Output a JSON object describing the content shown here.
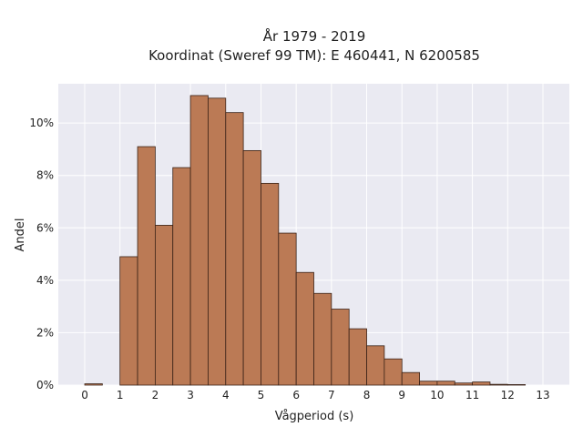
{
  "chart_data": {
    "type": "bar",
    "title_line1": "År 1979 - 2019",
    "title_line2": "Koordinat (Sweref 99 TM): E 460441, N 6200585",
    "xlabel": "Vågperiod (s)",
    "ylabel": "Andel",
    "x_ticks": [
      "0",
      "1",
      "2",
      "3",
      "4",
      "5",
      "6",
      "7",
      "8",
      "9",
      "10",
      "11",
      "12",
      "13"
    ],
    "y_ticks": [
      "0%",
      "2%",
      "4%",
      "6%",
      "8%",
      "10%"
    ],
    "xlim": [
      -0.75,
      13.75
    ],
    "ylim": [
      0,
      11.5
    ],
    "bin_width": 0.5,
    "bins": [
      {
        "x0": 0.0,
        "value": 0.05
      },
      {
        "x0": 1.0,
        "value": 4.9
      },
      {
        "x0": 1.5,
        "value": 9.1
      },
      {
        "x0": 2.0,
        "value": 6.1
      },
      {
        "x0": 2.5,
        "value": 8.3
      },
      {
        "x0": 3.0,
        "value": 11.05
      },
      {
        "x0": 3.5,
        "value": 10.95
      },
      {
        "x0": 4.0,
        "value": 10.4
      },
      {
        "x0": 4.5,
        "value": 8.95
      },
      {
        "x0": 5.0,
        "value": 7.7
      },
      {
        "x0": 5.5,
        "value": 5.8
      },
      {
        "x0": 6.0,
        "value": 4.3
      },
      {
        "x0": 6.5,
        "value": 3.5
      },
      {
        "x0": 7.0,
        "value": 2.9
      },
      {
        "x0": 7.5,
        "value": 2.15
      },
      {
        "x0": 8.0,
        "value": 1.5
      },
      {
        "x0": 8.5,
        "value": 1.0
      },
      {
        "x0": 9.0,
        "value": 0.48
      },
      {
        "x0": 9.5,
        "value": 0.15
      },
      {
        "x0": 10.0,
        "value": 0.15
      },
      {
        "x0": 10.5,
        "value": 0.08
      },
      {
        "x0": 11.0,
        "value": 0.12
      },
      {
        "x0": 11.5,
        "value": 0.03
      },
      {
        "x0": 12.0,
        "value": 0.02
      }
    ],
    "grid": true,
    "colors": {
      "bar_fill": "#bb7a55",
      "bar_edge": "#3a2217",
      "plot_bg": "#eaeaf2",
      "grid": "#ffffff"
    }
  }
}
